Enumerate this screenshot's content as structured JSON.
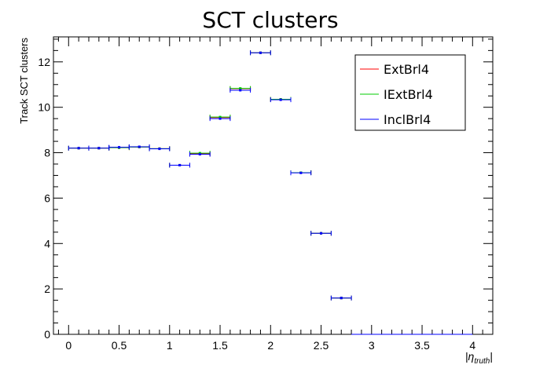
{
  "chart_data": {
    "type": "scatter",
    "title": "SCT clusters",
    "ylabel": "Track SCT clusters",
    "xlabel_main": "|η",
    "xlabel_sub": "truth",
    "xlabel_close": "|",
    "xlim": [
      -0.15,
      4.2
    ],
    "ylim": [
      0,
      13.1
    ],
    "xticks": [
      0,
      0.5,
      1,
      1.5,
      2,
      2.5,
      3,
      3.5,
      4
    ],
    "xtick_labels": [
      "0",
      "0.5",
      "1",
      "1.5",
      "2",
      "2.5",
      "3",
      "3.5",
      "4"
    ],
    "yticks": [
      0,
      2,
      4,
      6,
      8,
      10,
      12
    ],
    "ytick_labels": [
      "0",
      "2",
      "4",
      "6",
      "8",
      "10",
      "12"
    ],
    "bin_half_width": 0.1,
    "legend": {
      "position": "top-right"
    },
    "series": [
      {
        "name": "ExtBrl4",
        "color": "#ff0000",
        "x": [
          0.1,
          0.3,
          0.5,
          0.7,
          0.9,
          1.1,
          1.3,
          1.5,
          1.7,
          1.9,
          2.1,
          2.3,
          2.5,
          2.7
        ],
        "y": [
          8.2,
          8.2,
          8.22,
          8.25,
          8.18,
          7.45,
          7.95,
          9.55,
          10.82,
          12.4,
          10.35,
          7.12,
          4.45,
          1.6
        ]
      },
      {
        "name": "IExtBrl4",
        "color": "#00cc00",
        "x": [
          0.1,
          0.3,
          0.5,
          0.7,
          0.9,
          1.1,
          1.3,
          1.5,
          1.7,
          1.9,
          2.1,
          2.3,
          2.5,
          2.7
        ],
        "y": [
          8.2,
          8.2,
          8.22,
          8.25,
          8.18,
          7.45,
          7.98,
          9.57,
          10.83,
          12.4,
          10.35,
          7.12,
          4.45,
          1.6
        ]
      },
      {
        "name": "InclBrl4",
        "color": "#0000ff",
        "x": [
          0.1,
          0.3,
          0.5,
          0.7,
          0.9,
          1.1,
          1.3,
          1.5,
          1.7,
          1.9,
          2.1,
          2.3,
          2.5,
          2.7,
          2.9,
          3.1,
          3.3,
          3.5,
          3.7,
          3.9
        ],
        "y": [
          8.2,
          8.2,
          8.24,
          8.26,
          8.17,
          7.45,
          7.93,
          9.5,
          10.75,
          12.4,
          10.33,
          7.11,
          4.45,
          1.6,
          0,
          0,
          0,
          0,
          0,
          0
        ]
      }
    ]
  }
}
